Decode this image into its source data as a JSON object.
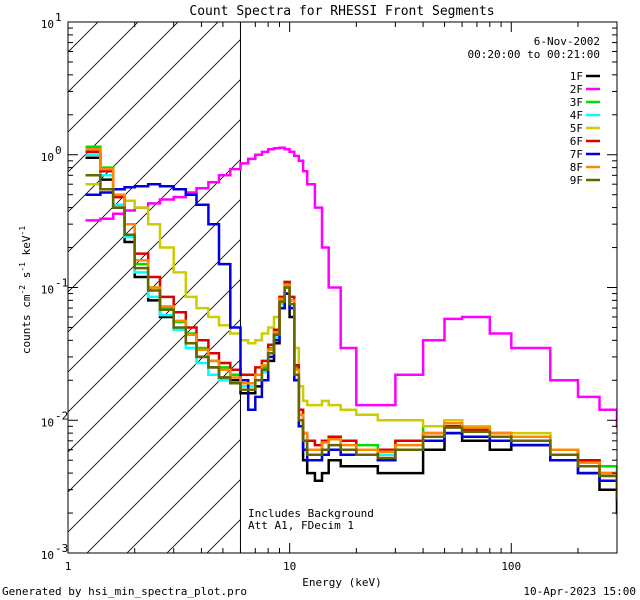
{
  "chart_data": {
    "type": "line",
    "title": "Count Spectra for RHESSI Front Segments",
    "xlabel": "Energy (keV)",
    "ylabel": "counts cm^-2 s^-1 keV^-1",
    "xscale": "log",
    "yscale": "log",
    "xlim": [
      1,
      300
    ],
    "ylim": [
      0.001,
      10
    ],
    "x_ticks": [
      {
        "value": 1,
        "label": "1"
      },
      {
        "value": 10,
        "label": "10"
      },
      {
        "value": 100,
        "label": "100"
      }
    ],
    "y_ticks": [
      {
        "value": 10,
        "label": "10",
        "exp": "1"
      },
      {
        "value": 1,
        "label": "10",
        "exp": "0"
      },
      {
        "value": 0.1,
        "label": "10",
        "exp": "-1"
      },
      {
        "value": 0.01,
        "label": "10",
        "exp": "-2"
      },
      {
        "value": 0.001,
        "label": "10",
        "exp": "-3"
      }
    ],
    "date": "6-Nov-2002",
    "time_range": "00:20:00 to 00:21:00",
    "hatched_below_keV": 6,
    "annotations": [
      "Includes Background",
      "Att A1, FDecim 1"
    ],
    "series": [
      {
        "name": "1F",
        "color": "#000000",
        "x": [
          1.2,
          1.4,
          1.6,
          1.8,
          2,
          2.3,
          2.6,
          3,
          3.4,
          3.8,
          4.3,
          4.8,
          5.4,
          6,
          6.5,
          7,
          7.5,
          8,
          8.5,
          9,
          9.5,
          10,
          10.5,
          11,
          11.5,
          12,
          13,
          14,
          15,
          17,
          20,
          25,
          30,
          40,
          50,
          60,
          80,
          100,
          150,
          200,
          250,
          300
        ],
        "y": [
          0.95,
          0.65,
          0.4,
          0.22,
          0.12,
          0.08,
          0.06,
          0.048,
          0.038,
          0.03,
          0.025,
          0.021,
          0.02,
          0.016,
          0.016,
          0.018,
          0.02,
          0.028,
          0.038,
          0.07,
          0.09,
          0.06,
          0.02,
          0.009,
          0.005,
          0.004,
          0.0035,
          0.004,
          0.005,
          0.0045,
          0.0045,
          0.004,
          0.004,
          0.006,
          0.008,
          0.007,
          0.006,
          0.0065,
          0.005,
          0.004,
          0.003,
          0.002
        ]
      },
      {
        "name": "2F",
        "color": "#ff00ff",
        "x": [
          1.2,
          1.4,
          1.6,
          1.8,
          2,
          2.3,
          2.6,
          3,
          3.4,
          3.8,
          4.3,
          4.8,
          5.4,
          6,
          6.5,
          7,
          7.5,
          8,
          8.5,
          9,
          9.5,
          10,
          10.5,
          11,
          11.5,
          12,
          13,
          14,
          15,
          17,
          20,
          25,
          30,
          40,
          50,
          60,
          80,
          100,
          150,
          200,
          250,
          300
        ],
        "y": [
          0.32,
          0.33,
          0.36,
          0.38,
          0.4,
          0.43,
          0.46,
          0.48,
          0.52,
          0.56,
          0.62,
          0.7,
          0.78,
          0.86,
          0.93,
          1.0,
          1.05,
          1.1,
          1.12,
          1.13,
          1.1,
          1.05,
          0.98,
          0.9,
          0.75,
          0.6,
          0.4,
          0.2,
          0.1,
          0.035,
          0.013,
          0.013,
          0.022,
          0.04,
          0.058,
          0.06,
          0.045,
          0.035,
          0.02,
          0.015,
          0.012,
          0.009
        ]
      },
      {
        "name": "3F",
        "color": "#00dd00",
        "x": [
          1.2,
          1.4,
          1.6,
          1.8,
          2,
          2.3,
          2.6,
          3,
          3.4,
          3.8,
          4.3,
          4.8,
          5.4,
          6,
          6.5,
          7,
          7.5,
          8,
          8.5,
          9,
          9.5,
          10,
          10.5,
          11,
          11.5,
          12,
          13,
          14,
          15,
          17,
          20,
          25,
          30,
          40,
          50,
          60,
          80,
          100,
          150,
          200,
          250,
          300
        ],
        "y": [
          1.15,
          0.8,
          0.5,
          0.3,
          0.15,
          0.1,
          0.07,
          0.055,
          0.045,
          0.035,
          0.028,
          0.025,
          0.022,
          0.02,
          0.019,
          0.022,
          0.025,
          0.035,
          0.045,
          0.08,
          0.11,
          0.08,
          0.025,
          0.012,
          0.008,
          0.006,
          0.006,
          0.007,
          0.0075,
          0.006,
          0.0065,
          0.006,
          0.007,
          0.009,
          0.01,
          0.009,
          0.008,
          0.0075,
          0.006,
          0.005,
          0.0045,
          0.003
        ]
      },
      {
        "name": "4F",
        "color": "#00ffff",
        "x": [
          1.2,
          1.4,
          1.6,
          1.8,
          2,
          2.3,
          2.6,
          3,
          3.4,
          3.8,
          4.3,
          4.8,
          5.4,
          6,
          6.5,
          7,
          7.5,
          8,
          8.5,
          9,
          9.5,
          10,
          10.5,
          11,
          11.5,
          12,
          13,
          14,
          15,
          17,
          20,
          25,
          30,
          40,
          50,
          60,
          80,
          100,
          150,
          200,
          250,
          300
        ],
        "y": [
          1.0,
          0.7,
          0.42,
          0.24,
          0.13,
          0.085,
          0.062,
          0.048,
          0.035,
          0.027,
          0.022,
          0.02,
          0.019,
          0.018,
          0.018,
          0.02,
          0.023,
          0.032,
          0.042,
          0.075,
          0.1,
          0.07,
          0.022,
          0.01,
          0.007,
          0.005,
          0.005,
          0.0055,
          0.006,
          0.0055,
          0.006,
          0.0055,
          0.006,
          0.008,
          0.009,
          0.0085,
          0.0075,
          0.007,
          0.0055,
          0.0045,
          0.004,
          0.0028
        ]
      },
      {
        "name": "5F",
        "color": "#cccc00",
        "x": [
          1.2,
          1.4,
          1.6,
          1.8,
          2,
          2.3,
          2.6,
          3,
          3.4,
          3.8,
          4.3,
          4.8,
          5.4,
          6,
          6.5,
          7,
          7.5,
          8,
          8.5,
          9,
          9.5,
          10,
          10.5,
          11,
          11.5,
          12,
          13,
          14,
          15,
          17,
          20,
          25,
          30,
          40,
          50,
          60,
          80,
          100,
          150,
          200,
          250,
          300
        ],
        "y": [
          0.6,
          0.55,
          0.5,
          0.45,
          0.4,
          0.3,
          0.2,
          0.13,
          0.085,
          0.07,
          0.06,
          0.052,
          0.045,
          0.04,
          0.038,
          0.04,
          0.045,
          0.05,
          0.06,
          0.085,
          0.1,
          0.08,
          0.035,
          0.018,
          0.014,
          0.013,
          0.013,
          0.014,
          0.013,
          0.012,
          0.011,
          0.01,
          0.01,
          0.009,
          0.01,
          0.009,
          0.008,
          0.008,
          0.006,
          0.005,
          0.004,
          0.003
        ]
      },
      {
        "name": "6F",
        "color": "#dd0000",
        "x": [
          1.2,
          1.4,
          1.6,
          1.8,
          2,
          2.3,
          2.6,
          3,
          3.4,
          3.8,
          4.3,
          4.8,
          5.4,
          6,
          6.5,
          7,
          7.5,
          8,
          8.5,
          9,
          9.5,
          10,
          10.5,
          11,
          11.5,
          12,
          13,
          14,
          15,
          17,
          20,
          25,
          30,
          40,
          50,
          60,
          80,
          100,
          150,
          200,
          250,
          300
        ],
        "y": [
          1.05,
          0.75,
          0.48,
          0.3,
          0.18,
          0.12,
          0.085,
          0.065,
          0.05,
          0.04,
          0.032,
          0.027,
          0.024,
          0.022,
          0.022,
          0.025,
          0.028,
          0.037,
          0.048,
          0.085,
          0.11,
          0.085,
          0.026,
          0.012,
          0.008,
          0.007,
          0.0065,
          0.007,
          0.0075,
          0.007,
          0.006,
          0.006,
          0.007,
          0.008,
          0.009,
          0.0085,
          0.008,
          0.0075,
          0.006,
          0.005,
          0.004,
          0.0026
        ]
      },
      {
        "name": "7F",
        "color": "#0000dd",
        "x": [
          1.2,
          1.4,
          1.6,
          1.8,
          2,
          2.3,
          2.6,
          3,
          3.4,
          3.8,
          4.3,
          4.8,
          5.4,
          6,
          6.5,
          7,
          7.5,
          8,
          8.5,
          9,
          9.5,
          10,
          10.5,
          11,
          11.5,
          12,
          13,
          14,
          15,
          17,
          20,
          25,
          30,
          40,
          50,
          60,
          80,
          100,
          150,
          200,
          250,
          300
        ],
        "y": [
          0.5,
          0.52,
          0.55,
          0.57,
          0.58,
          0.6,
          0.58,
          0.55,
          0.5,
          0.42,
          0.3,
          0.15,
          0.05,
          0.02,
          0.012,
          0.015,
          0.02,
          0.03,
          0.04,
          0.07,
          0.09,
          0.07,
          0.02,
          0.009,
          0.006,
          0.005,
          0.005,
          0.0055,
          0.006,
          0.0055,
          0.006,
          0.005,
          0.006,
          0.007,
          0.008,
          0.0075,
          0.007,
          0.0065,
          0.005,
          0.004,
          0.0035,
          0.0025
        ]
      },
      {
        "name": "8F",
        "color": "#ff8800",
        "x": [
          1.2,
          1.4,
          1.6,
          1.8,
          2,
          2.3,
          2.6,
          3,
          3.4,
          3.8,
          4.3,
          4.8,
          5.4,
          6,
          6.5,
          7,
          7.5,
          8,
          8.5,
          9,
          9.5,
          10,
          10.5,
          11,
          11.5,
          12,
          13,
          14,
          15,
          17,
          20,
          25,
          30,
          40,
          50,
          60,
          80,
          100,
          150,
          200,
          250,
          300
        ],
        "y": [
          1.1,
          0.78,
          0.5,
          0.3,
          0.16,
          0.1,
          0.072,
          0.056,
          0.044,
          0.034,
          0.028,
          0.024,
          0.021,
          0.019,
          0.019,
          0.022,
          0.026,
          0.034,
          0.046,
          0.082,
          0.105,
          0.08,
          0.024,
          0.011,
          0.008,
          0.006,
          0.006,
          0.0068,
          0.0072,
          0.0065,
          0.006,
          0.0058,
          0.0065,
          0.008,
          0.0095,
          0.0088,
          0.008,
          0.0075,
          0.006,
          0.0048,
          0.004,
          0.0028
        ]
      },
      {
        "name": "9F",
        "color": "#666600",
        "x": [
          1.2,
          1.4,
          1.6,
          1.8,
          2,
          2.3,
          2.6,
          3,
          3.4,
          3.8,
          4.3,
          4.8,
          5.4,
          6,
          6.5,
          7,
          7.5,
          8,
          8.5,
          9,
          9.5,
          10,
          10.5,
          11,
          11.5,
          12,
          13,
          14,
          15,
          17,
          20,
          25,
          30,
          40,
          50,
          60,
          80,
          100,
          150,
          200,
          250,
          300
        ],
        "y": [
          0.7,
          0.55,
          0.4,
          0.25,
          0.14,
          0.095,
          0.068,
          0.05,
          0.038,
          0.03,
          0.025,
          0.021,
          0.019,
          0.017,
          0.017,
          0.02,
          0.024,
          0.032,
          0.044,
          0.078,
          0.1,
          0.075,
          0.022,
          0.01,
          0.007,
          0.0055,
          0.0055,
          0.006,
          0.0065,
          0.006,
          0.0055,
          0.0052,
          0.006,
          0.0075,
          0.0088,
          0.0082,
          0.0075,
          0.007,
          0.0055,
          0.0045,
          0.0038,
          0.0026
        ]
      }
    ]
  },
  "footer": {
    "generated_by": "Generated by hsi_min_spectra_plot.pro",
    "timestamp": "10-Apr-2023 15:00"
  }
}
